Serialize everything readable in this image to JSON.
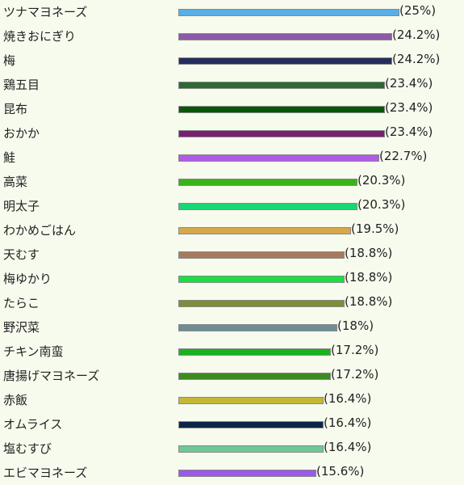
{
  "chart_data": {
    "type": "bar",
    "orientation": "horizontal",
    "categories": [
      "ツナマヨネーズ",
      "焼きおにぎり",
      "梅",
      "鶏五目",
      "昆布",
      "おかか",
      "鮭",
      "高菜",
      "明太子",
      "わかめごはん",
      "天むす",
      "梅ゆかり",
      "たらこ",
      "野沢菜",
      "チキン南蛮",
      "唐揚げマヨネーズ",
      "赤飯",
      "オムライス",
      "塩むすび",
      "エビマヨネーズ"
    ],
    "values": [
      25,
      24.2,
      24.2,
      23.4,
      23.4,
      23.4,
      22.7,
      20.3,
      20.3,
      19.5,
      18.8,
      18.8,
      18.8,
      18,
      17.2,
      17.2,
      16.4,
      16.4,
      16.4,
      15.6
    ],
    "value_labels": [
      "(25%)",
      "(24.2%)",
      "(24.2%)",
      "(23.4%)",
      "(23.4%)",
      "(23.4%)",
      "(22.7%)",
      "(20.3%)",
      "(20.3%)",
      "(19.5%)",
      "(18.8%)",
      "(18.8%)",
      "(18.8%)",
      "(18%)",
      "(17.2%)",
      "(17.2%)",
      "(16.4%)",
      "(16.4%)",
      "(16.4%)",
      "(15.6%)"
    ],
    "colors": [
      "#5aaee6",
      "#8c5aa8",
      "#242d5c",
      "#2c6a30",
      "#085808",
      "#7a1e74",
      "#b05ae6",
      "#36b418",
      "#16d872",
      "#d6a84a",
      "#a87a5c",
      "#18e040",
      "#7e8e36",
      "#6e8e96",
      "#16b41c",
      "#3e8a22",
      "#c6b836",
      "#0c2448",
      "#6ec896",
      "#9c5aea"
    ],
    "xlim": [
      0,
      25
    ],
    "grid": false,
    "legend": "none"
  }
}
